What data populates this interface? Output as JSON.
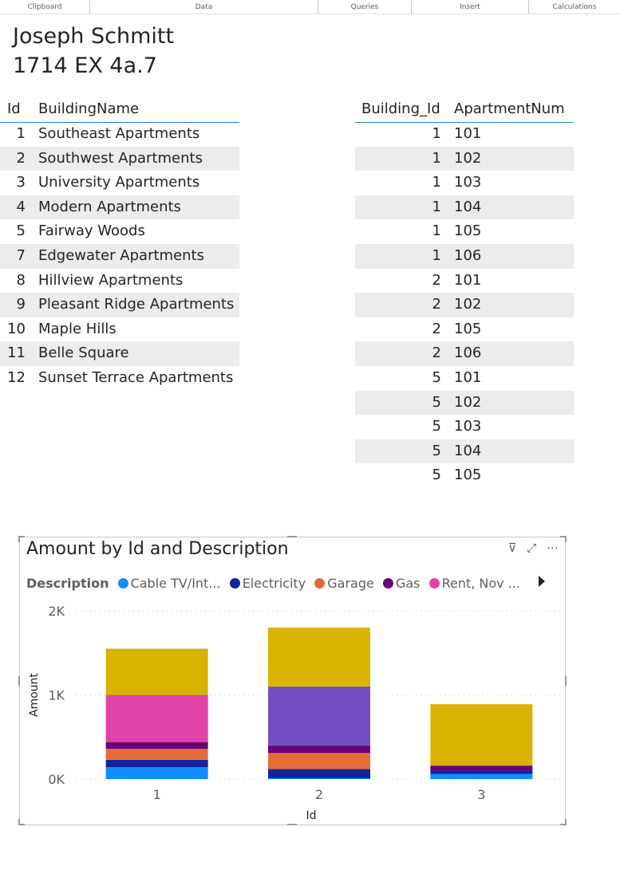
{
  "ribbon": {
    "groups": [
      "Clipboard",
      "Data",
      "Queries",
      "Insert",
      "Calculations"
    ]
  },
  "header": {
    "name": "Joseph Schmitt",
    "subtitle": "1714 EX 4a.7"
  },
  "buildings_table": {
    "columns": [
      "Id",
      "BuildingName"
    ],
    "rows": [
      {
        "id": "1",
        "name": "Southeast Apartments"
      },
      {
        "id": "2",
        "name": "Southwest Apartments"
      },
      {
        "id": "3",
        "name": "University Apartments"
      },
      {
        "id": "4",
        "name": "Modern Apartments"
      },
      {
        "id": "5",
        "name": "Fairway Woods"
      },
      {
        "id": "7",
        "name": "Edgewater Apartments"
      },
      {
        "id": "8",
        "name": "Hillview Apartments"
      },
      {
        "id": "9",
        "name": "Pleasant Ridge Apartments"
      },
      {
        "id": "10",
        "name": "Maple Hills"
      },
      {
        "id": "11",
        "name": "Belle Square"
      },
      {
        "id": "12",
        "name": "Sunset Terrace Apartments"
      }
    ]
  },
  "apartments_table": {
    "columns": [
      "Building_Id",
      "ApartmentNum"
    ],
    "rows": [
      {
        "building_id": "1",
        "apt": "101"
      },
      {
        "building_id": "1",
        "apt": "102"
      },
      {
        "building_id": "1",
        "apt": "103"
      },
      {
        "building_id": "1",
        "apt": "104"
      },
      {
        "building_id": "1",
        "apt": "105"
      },
      {
        "building_id": "1",
        "apt": "106"
      },
      {
        "building_id": "2",
        "apt": "101"
      },
      {
        "building_id": "2",
        "apt": "102"
      },
      {
        "building_id": "2",
        "apt": "105"
      },
      {
        "building_id": "2",
        "apt": "106"
      },
      {
        "building_id": "5",
        "apt": "101"
      },
      {
        "building_id": "5",
        "apt": "102"
      },
      {
        "building_id": "5",
        "apt": "103"
      },
      {
        "building_id": "5",
        "apt": "104"
      },
      {
        "building_id": "5",
        "apt": "105"
      }
    ]
  },
  "visual": {
    "title": "Amount by Id and Description",
    "icons": [
      "filter-icon",
      "focus-mode-icon",
      "more-options-icon"
    ],
    "legend_title": "Description",
    "legend": [
      {
        "label": "Cable TV/Int...",
        "color": "#118DFF"
      },
      {
        "label": "Electricity",
        "color": "#12239E"
      },
      {
        "label": "Garage",
        "color": "#E66C37"
      },
      {
        "label": "Gas",
        "color": "#6B007B"
      },
      {
        "label": "Rent, Nov ...",
        "color": "#E044A7"
      }
    ]
  },
  "chart_data": {
    "type": "bar",
    "stacked": true,
    "title": "Amount by Id and Description",
    "xlabel": "Id",
    "ylabel": "Amount",
    "categories": [
      "1",
      "2",
      "3"
    ],
    "ylim": [
      0,
      2000
    ],
    "yticks": [
      "0K",
      "1K",
      "2K"
    ],
    "grid": true,
    "series": [
      {
        "name": "Cable TV/Int...",
        "color": "#118DFF",
        "values": [
          140,
          10,
          60
        ]
      },
      {
        "name": "Electricity",
        "color": "#12239E",
        "values": [
          90,
          110,
          40
        ]
      },
      {
        "name": "Garage",
        "color": "#E66C37",
        "values": [
          130,
          190,
          0
        ]
      },
      {
        "name": "Gas",
        "color": "#6B007B",
        "values": [
          80,
          90,
          60
        ]
      },
      {
        "name": "Rent, Nov ...",
        "color": "#E044A7",
        "values": [
          560,
          0,
          0
        ]
      },
      {
        "color": "#744EC2",
        "values": [
          0,
          700,
          0
        ]
      },
      {
        "color": "#D9B300",
        "values": [
          550,
          700,
          730
        ]
      }
    ]
  }
}
